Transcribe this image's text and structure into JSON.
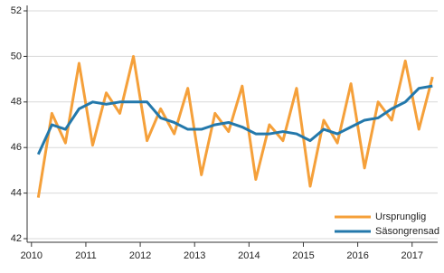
{
  "chart_data": {
    "type": "line",
    "x": [
      2010.125,
      2010.375,
      2010.625,
      2010.875,
      2011.125,
      2011.375,
      2011.625,
      2011.875,
      2012.125,
      2012.375,
      2012.625,
      2012.875,
      2013.125,
      2013.375,
      2013.625,
      2013.875,
      2014.125,
      2014.375,
      2014.625,
      2014.875,
      2015.125,
      2015.375,
      2015.625,
      2015.875,
      2016.125,
      2016.375,
      2016.625,
      2016.875,
      2017.125,
      2017.375
    ],
    "series": [
      {
        "name": "Ursprunglig",
        "color": "#f5a03a",
        "values": [
          43.8,
          47.5,
          46.2,
          49.7,
          46.1,
          48.4,
          47.5,
          50.0,
          46.3,
          47.7,
          46.6,
          48.6,
          44.8,
          47.5,
          46.7,
          48.7,
          44.6,
          47.0,
          46.3,
          48.6,
          44.3,
          47.2,
          46.2,
          48.8,
          45.1,
          48.0,
          47.2,
          49.8,
          46.8,
          49.1
        ]
      },
      {
        "name": "Säsongrensad",
        "color": "#2378ab",
        "values": [
          45.7,
          47.0,
          46.8,
          47.7,
          48.0,
          47.9,
          48.0,
          48.0,
          48.0,
          47.3,
          47.1,
          46.8,
          46.8,
          47.0,
          47.1,
          46.9,
          46.6,
          46.6,
          46.7,
          46.6,
          46.3,
          46.8,
          46.6,
          46.9,
          47.2,
          47.3,
          47.7,
          48.0,
          48.6,
          48.7
        ]
      }
    ],
    "xlim": [
      2009.92,
      2017.47
    ],
    "xticks": [
      2010,
      2011,
      2012,
      2013,
      2014,
      2015,
      2016,
      2017
    ],
    "ylim": [
      42,
      52
    ],
    "yticks": [
      42,
      44,
      46,
      48,
      50,
      52
    ],
    "grid": true,
    "legend": "lower-right"
  }
}
